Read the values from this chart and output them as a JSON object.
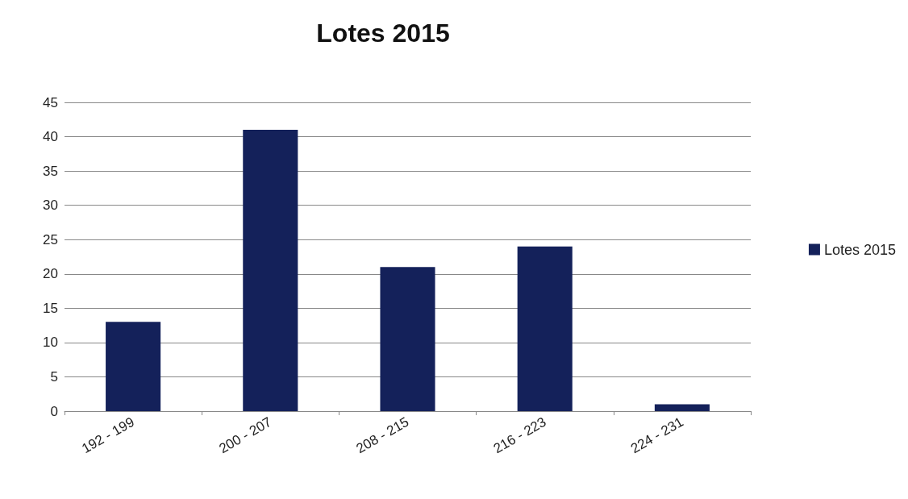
{
  "chart_data": {
    "type": "bar",
    "title": "Lotes 2015",
    "categories": [
      "192 - 199",
      "200 - 207",
      "208 - 215",
      "216 - 223",
      "224 - 231"
    ],
    "series": [
      {
        "name": "Lotes 2015",
        "color": "#14215a",
        "values": [
          13,
          41,
          21,
          24,
          1
        ]
      }
    ],
    "ylim": [
      0,
      45
    ],
    "yticks": [
      0,
      5,
      10,
      15,
      20,
      25,
      30,
      35,
      40,
      45
    ],
    "grid": "y",
    "legend": "right"
  }
}
